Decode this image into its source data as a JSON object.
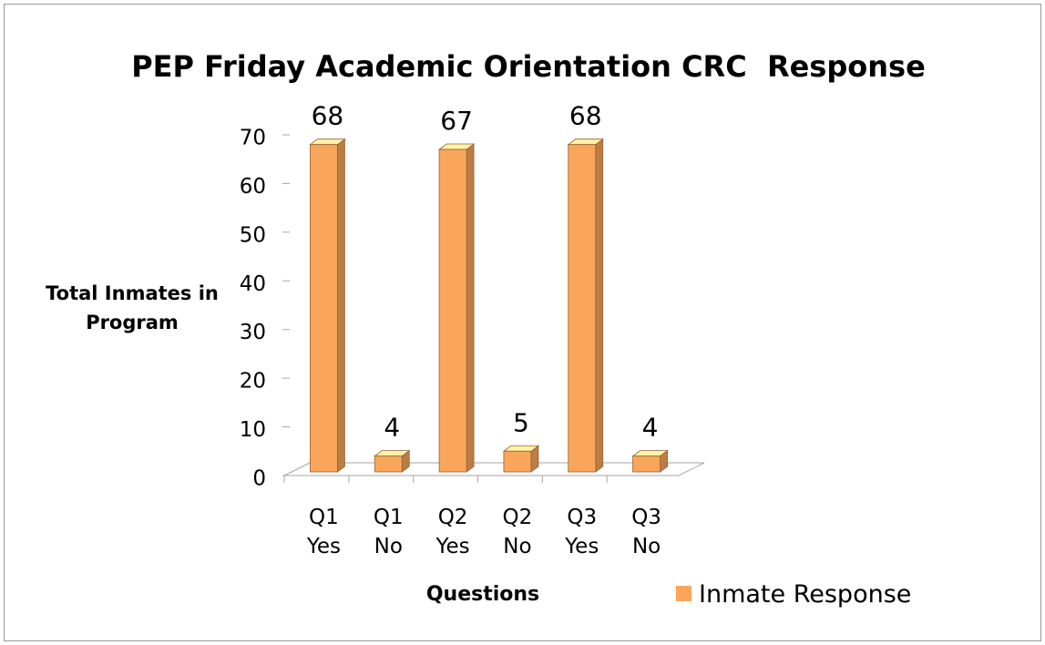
{
  "chart_data": {
    "type": "bar3d",
    "title": "PEP Friday Academic Orientation CRC  Response",
    "x_label": "Questions",
    "y_label": "Total Inmates in Program",
    "categories": [
      "Q1 Yes",
      "Q1 No",
      "Q2 Yes",
      "Q2 No",
      "Q3 Yes",
      "Q3 No"
    ],
    "series": [
      {
        "name": "Inmate Response",
        "color": "#f9a65a",
        "values": [
          68,
          4,
          67,
          5,
          68,
          4
        ]
      }
    ],
    "ylim": [
      0,
      70
    ],
    "yticks": [
      0,
      10,
      20,
      30,
      40,
      50,
      60,
      70
    ],
    "grid": false,
    "legend": "bottom-right"
  }
}
